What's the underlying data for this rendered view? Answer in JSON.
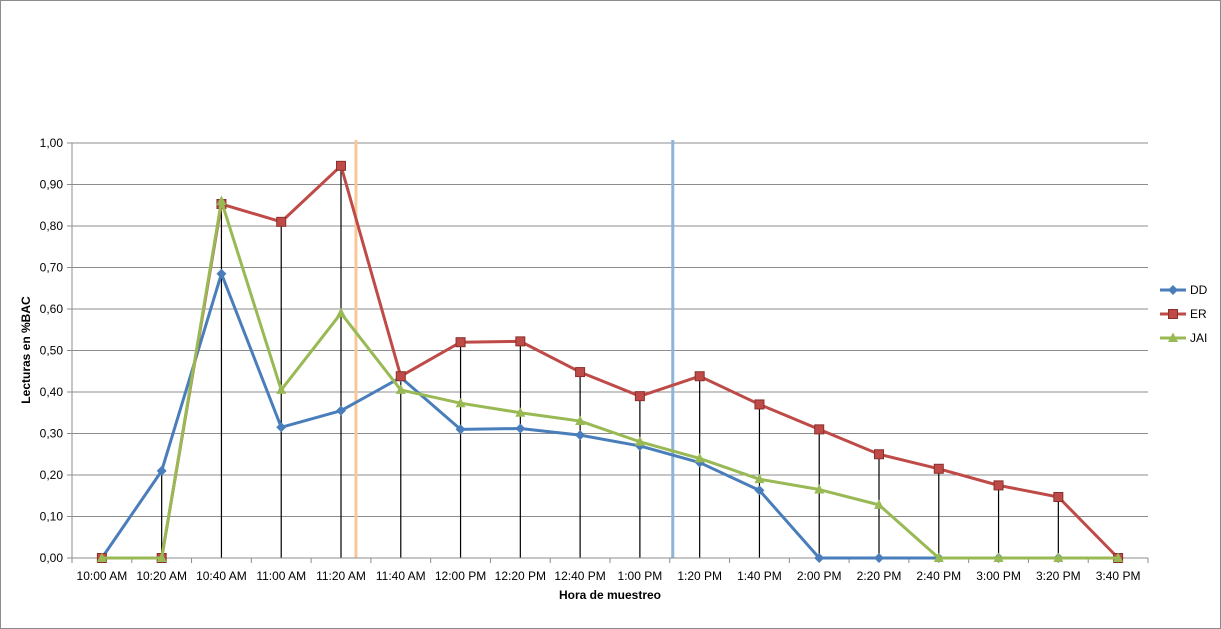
{
  "chart_data": {
    "type": "line",
    "title": "",
    "xlabel": "Hora de muestreo",
    "ylabel": "Lecturas en %BAC",
    "ylim": [
      0,
      1.0
    ],
    "y_ticks": [
      "0,00",
      "0,10",
      "0,20",
      "0,30",
      "0,40",
      "0,50",
      "0,60",
      "0,70",
      "0,80",
      "0,90",
      "1,00"
    ],
    "grid": true,
    "legend_position": "right",
    "categories": [
      "10:00 AM",
      "10:20 AM",
      "10:40 AM",
      "11:00 AM",
      "11:20 AM",
      "11:40 AM",
      "12:00 PM",
      "12:20 PM",
      "12:40 PM",
      "1:00 PM",
      "1:20 PM",
      "1:40 PM",
      "2:00 PM",
      "2:20 PM",
      "2:40 PM",
      "3:00 PM",
      "3:20 PM",
      "3:40 PM"
    ],
    "series": [
      {
        "name": "DD",
        "color": "#4a7ebb",
        "marker": "diamond",
        "values": [
          0,
          0.21,
          0.685,
          0.315,
          0.355,
          0.435,
          0.31,
          0.312,
          0.296,
          0.27,
          0.23,
          0.163,
          0,
          0,
          0,
          0,
          0,
          0
        ]
      },
      {
        "name": "ER",
        "color": "#be4b48",
        "marker": "square",
        "values": [
          0,
          0,
          0.853,
          0.81,
          0.945,
          0.438,
          0.52,
          0.522,
          0.448,
          0.39,
          0.438,
          0.37,
          0.31,
          0.25,
          0.215,
          0.175,
          0.147,
          0
        ]
      },
      {
        "name": "JAI",
        "color": "#98b954",
        "marker": "triangle",
        "values": [
          0,
          0,
          0.86,
          0.405,
          0.59,
          0.405,
          0.373,
          0.35,
          0.33,
          0.28,
          0.24,
          0.19,
          0.165,
          0.128,
          0,
          0,
          0,
          0
        ]
      }
    ],
    "reference_lines": [
      {
        "x": 4.25,
        "color": "#f9c89a"
      },
      {
        "x": 9.55,
        "color": "#8db4d9"
      }
    ]
  }
}
